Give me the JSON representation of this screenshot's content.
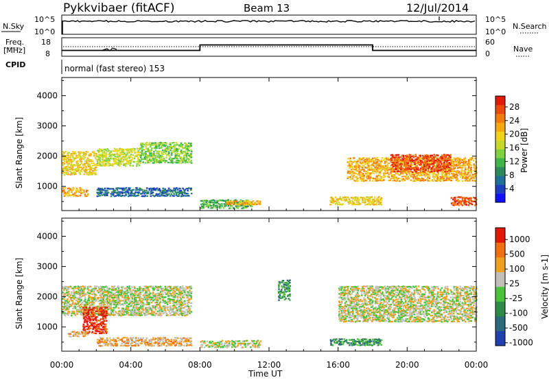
{
  "header": {
    "station": "Pykkvibaer (fitACF)",
    "beam": "Beam 13",
    "date": "12/Jul/2014"
  },
  "sky_panel": {
    "left_label": "N.Sky",
    "right_label": "N.Search",
    "tick_labels_left": [
      "10^5",
      "10^0"
    ],
    "tick_labels_right": [
      "10^5",
      "10^0"
    ]
  },
  "freq_panel": {
    "left_label_line1": "Freq.",
    "left_label_line2": "[MHz]",
    "tick_labels_left": [
      "18",
      "8"
    ],
    "right_label": "Nave",
    "tick_labels_right": [
      "60",
      "0"
    ],
    "freq_steps": [
      {
        "start_hour": 0.0,
        "end_hour": 8.0,
        "level": 0.3
      },
      {
        "start_hour": 8.0,
        "end_hour": 18.0,
        "level": 0.62
      },
      {
        "start_hour": 18.0,
        "end_hour": 24.0,
        "level": 0.3
      }
    ]
  },
  "cpid": {
    "label": "CPID",
    "program": "normal (fast stereo) 153"
  },
  "x_axis": {
    "label": "Time UT",
    "tick_labels": [
      "00:00",
      "04:00",
      "08:00",
      "12:00",
      "16:00",
      "20:00",
      "00:00"
    ],
    "range_hours": [
      0,
      24
    ]
  },
  "chart_data": [
    {
      "type": "heatmap",
      "name": "power",
      "ylabel": "Slant Range [km]",
      "y_ticks": [
        "1000",
        "2000",
        "3000",
        "4000"
      ],
      "ylim": [
        200,
        4600
      ],
      "xlim_hours": [
        0,
        24
      ],
      "colorbar": {
        "label": "Power [dB]",
        "tick_labels": [
          "4",
          "8",
          "12",
          "16",
          "20",
          "24",
          "28"
        ],
        "colors": [
          "#1010ff",
          "#1d3fc2",
          "#226f9a",
          "#2e8a5a",
          "#3fb54a",
          "#7fd23f",
          "#c6d92a",
          "#f0d21b",
          "#f5a812",
          "#f27a0e",
          "#ea4a0b",
          "#e01a08"
        ]
      },
      "scatter_bands": [
        {
          "t0": 0.0,
          "t1": 2.0,
          "r0": 1400,
          "r1": 2200,
          "level": 7
        },
        {
          "t0": 2.0,
          "t1": 4.5,
          "r0": 1700,
          "r1": 2300,
          "level": 6
        },
        {
          "t0": 4.5,
          "t1": 7.5,
          "r0": 1800,
          "r1": 2500,
          "level": 5
        },
        {
          "t0": 0.0,
          "t1": 1.5,
          "r0": 700,
          "r1": 1000,
          "level": 8
        },
        {
          "t0": 2.0,
          "t1": 7.5,
          "r0": 700,
          "r1": 1000,
          "level": 2
        },
        {
          "t0": 8.0,
          "t1": 11.0,
          "r0": 300,
          "r1": 600,
          "level": 4
        },
        {
          "t0": 9.5,
          "t1": 11.5,
          "r0": 420,
          "r1": 560,
          "level": 8
        },
        {
          "t0": 15.5,
          "t1": 18.5,
          "r0": 420,
          "r1": 700,
          "level": 7
        },
        {
          "t0": 16.5,
          "t1": 24.0,
          "r0": 1200,
          "r1": 2000,
          "level": 8
        },
        {
          "t0": 19.0,
          "t1": 22.5,
          "r0": 1500,
          "r1": 2100,
          "level": 10
        },
        {
          "t0": 22.5,
          "t1": 24.0,
          "r0": 400,
          "r1": 700,
          "level": 10
        }
      ]
    },
    {
      "type": "heatmap",
      "name": "velocity",
      "ylabel": "Slant Range [km]",
      "y_ticks": [
        "1000",
        "2000",
        "3000",
        "4000"
      ],
      "ylim": [
        200,
        4600
      ],
      "xlim_hours": [
        0,
        24
      ],
      "colorbar": {
        "label": "Velocity [m s-1]",
        "tick_labels": [
          "1000",
          "500",
          "100",
          "25",
          "-25",
          "-100",
          "-500",
          "-1000"
        ],
        "colors": [
          "#2040b0",
          "#2a6a7a",
          "#2f8a4a",
          "#4cc23a",
          "#c0c0b8",
          "#f0a020",
          "#f07010",
          "#e01808"
        ]
      },
      "scatter_bands": [
        {
          "t0": 0.0,
          "t1": 7.5,
          "r0": 1400,
          "r1": 2400,
          "level": 4
        },
        {
          "t0": 1.2,
          "t1": 2.6,
          "r0": 800,
          "r1": 1700,
          "level": 7
        },
        {
          "t0": 0.3,
          "t1": 1.5,
          "r0": 700,
          "r1": 900,
          "level": 5
        },
        {
          "t0": 2.0,
          "t1": 7.5,
          "r0": 400,
          "r1": 700,
          "level": 5
        },
        {
          "t0": 8.0,
          "t1": 11.5,
          "r0": 350,
          "r1": 600,
          "level": 4
        },
        {
          "t0": 12.5,
          "t1": 13.2,
          "r0": 1900,
          "r1": 2600,
          "level": 2
        },
        {
          "t0": 15.5,
          "t1": 18.5,
          "r0": 420,
          "r1": 650,
          "level": 2
        },
        {
          "t0": 16.0,
          "t1": 24.0,
          "r0": 1200,
          "r1": 2400,
          "level": 4
        }
      ]
    }
  ]
}
